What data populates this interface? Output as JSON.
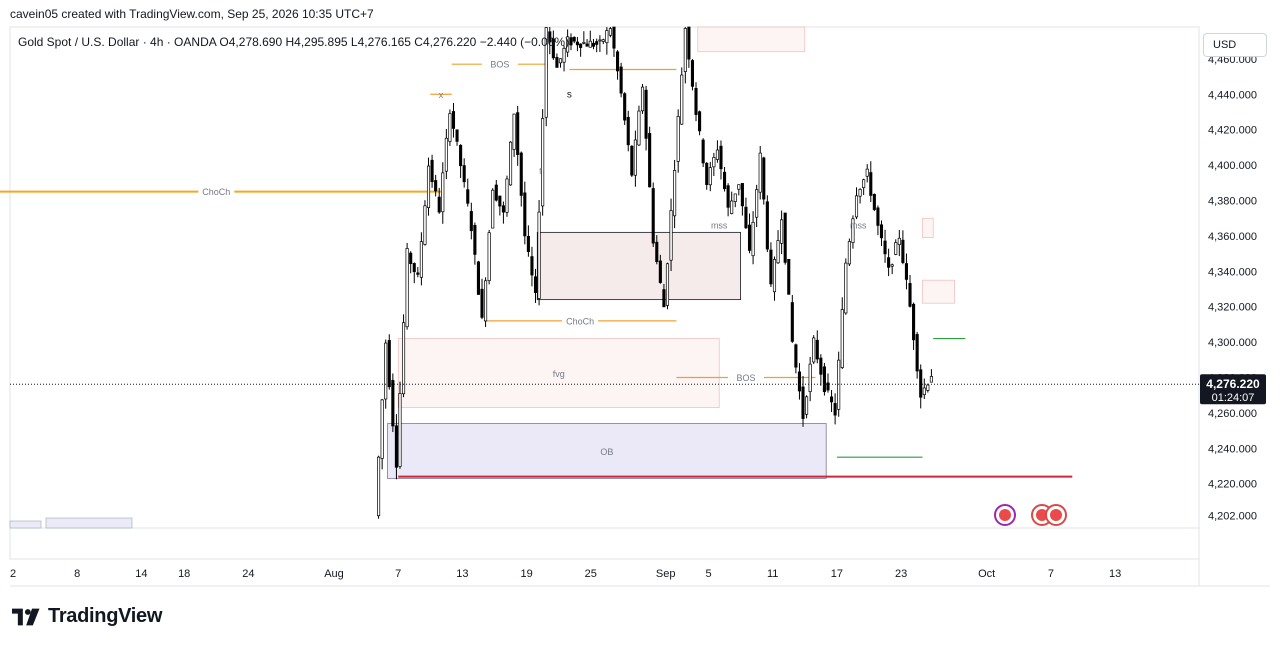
{
  "caption": "cavein05 created with TradingView.com, Sep 25, 2026 10:35 UTC+7",
  "legend": {
    "symbol": "Gold Spot / U.S. Dollar · 4h · OANDA",
    "open": "O4,278.690",
    "high": "H4,295.895",
    "low": "L4,276.165",
    "close": "C4,276.220",
    "change": "−2.440 (−0.06%)"
  },
  "currency": "USD",
  "brand": "TradingView",
  "price_tag": {
    "price": "4,276.220",
    "countdown": "01:24:07"
  },
  "colors": {
    "up": "#ffffff",
    "down": "#000000",
    "choch_orange": "#f5a623",
    "bos_orange": "#f0a030",
    "green": "#2e9e3f",
    "red_line": "#d0243c",
    "zone_pink": "#f5dede",
    "zone_lav": "#dcd8f2"
  },
  "chart_data": {
    "type": "candlestick",
    "symbol": "XAUUSD",
    "timeframe": "4h",
    "y_range": [
      4195,
      4478
    ],
    "y_ticks": [
      4202,
      4220,
      4240,
      4260,
      4280,
      4300,
      4320,
      4340,
      4360,
      4380,
      4400,
      4420,
      4440,
      4460
    ],
    "y_tick_labels": [
      "4,202.000",
      "4,220.000",
      "4,240.000",
      "4,260.000",
      "4,280.000",
      "4,300.000",
      "4,320.000",
      "4,340.000",
      "4,360.000",
      "4,380.000",
      "4,400.000",
      "4,420.000",
      "4,440.000",
      "4,460.000"
    ],
    "x_ticks": [
      {
        "label": "2",
        "date": "2026-07-02"
      },
      {
        "label": "8",
        "date": "2026-07-08"
      },
      {
        "label": "14",
        "date": "2026-07-14"
      },
      {
        "label": "18",
        "date": "2026-07-18"
      },
      {
        "label": "24",
        "date": "2026-07-24"
      },
      {
        "label": "Aug",
        "date": "2026-08-01"
      },
      {
        "label": "7",
        "date": "2026-08-07"
      },
      {
        "label": "13",
        "date": "2026-08-13"
      },
      {
        "label": "19",
        "date": "2026-08-19"
      },
      {
        "label": "25",
        "date": "2026-08-25"
      },
      {
        "label": "Sep",
        "date": "2026-09-01"
      },
      {
        "label": "5",
        "date": "2026-09-05"
      },
      {
        "label": "11",
        "date": "2026-09-11"
      },
      {
        "label": "17",
        "date": "2026-09-17"
      },
      {
        "label": "23",
        "date": "2026-09-23"
      },
      {
        "label": "Oct",
        "date": "2026-10-01"
      },
      {
        "label": "7",
        "date": "2026-10-07"
      },
      {
        "label": "13",
        "date": "2026-10-13"
      }
    ],
    "current_price": 4276.22,
    "price_path": [
      [
        "2026-08-05",
        4202
      ],
      [
        "2026-08-06",
        4300
      ],
      [
        "2026-08-07",
        4232
      ],
      [
        "2026-08-08",
        4350
      ],
      [
        "2026-08-09",
        4336
      ],
      [
        "2026-08-10",
        4400
      ],
      [
        "2026-08-11",
        4375
      ],
      [
        "2026-08-12",
        4432
      ],
      [
        "2026-08-13",
        4400
      ],
      [
        "2026-08-14",
        4365
      ],
      [
        "2026-08-15",
        4312
      ],
      [
        "2026-08-16",
        4388
      ],
      [
        "2026-08-17",
        4372
      ],
      [
        "2026-08-18",
        4430
      ],
      [
        "2026-08-19",
        4360
      ],
      [
        "2026-08-20",
        4325
      ],
      [
        "2026-08-21",
        4478
      ],
      [
        "2026-08-22",
        4455
      ],
      [
        "2026-08-23",
        4470
      ],
      [
        "2026-08-26",
        4468
      ],
      [
        "2026-08-27",
        4478
      ],
      [
        "2026-08-28",
        4440
      ],
      [
        "2026-08-29",
        4395
      ],
      [
        "2026-08-30",
        4445
      ],
      [
        "2026-08-31",
        4358
      ],
      [
        "2026-09-01",
        4320
      ],
      [
        "2026-09-02",
        4400
      ],
      [
        "2026-09-03",
        4478
      ],
      [
        "2026-09-04",
        4430
      ],
      [
        "2026-09-05",
        4390
      ],
      [
        "2026-09-06",
        4410
      ],
      [
        "2026-09-07",
        4375
      ],
      [
        "2026-09-08",
        4390
      ],
      [
        "2026-09-09",
        4350
      ],
      [
        "2026-09-10",
        4405
      ],
      [
        "2026-09-11",
        4330
      ],
      [
        "2026-09-12",
        4372
      ],
      [
        "2026-09-13",
        4300
      ],
      [
        "2026-09-14",
        4258
      ],
      [
        "2026-09-15",
        4300
      ],
      [
        "2026-09-16",
        4275
      ],
      [
        "2026-09-17",
        4260
      ],
      [
        "2026-09-18",
        4345
      ],
      [
        "2026-09-19",
        4385
      ],
      [
        "2026-09-20",
        4395
      ],
      [
        "2026-09-21",
        4365
      ],
      [
        "2026-09-22",
        4340
      ],
      [
        "2026-09-23",
        4360
      ],
      [
        "2026-09-24",
        4320
      ],
      [
        "2026-09-25",
        4270
      ],
      [
        "2026-09-26",
        4282
      ]
    ],
    "annotations": {
      "lines": [
        {
          "label": "ChoCh",
          "price": 4385,
          "from": "2026-06-30",
          "to": "2026-08-11",
          "color": "choch_orange"
        },
        {
          "label": "BOS",
          "price": 4457,
          "from": "2026-08-12",
          "to": "2026-08-21",
          "color": "bos_orange"
        },
        {
          "label": "x",
          "price": 4440,
          "from": "2026-08-10",
          "to": "2026-08-12",
          "color": "bos_orange"
        },
        {
          "label": "",
          "price": 4454,
          "from": "2026-08-23",
          "to": "2026-09-02",
          "color": "bos_orange"
        },
        {
          "label": "ChoCh",
          "price": 4312,
          "from": "2026-08-15",
          "to": "2026-09-02",
          "color": "bos_orange"
        },
        {
          "label": "BOS",
          "price": 4280,
          "from": "2026-09-02",
          "to": "2026-09-15",
          "color": "bos_orange"
        },
        {
          "label": "",
          "price": 4235,
          "from": "2026-09-17",
          "to": "2026-09-25",
          "color": "green"
        },
        {
          "label": "",
          "price": 4302,
          "from": "2026-09-26",
          "to": "2026-09-29",
          "color": "green"
        },
        {
          "label": "",
          "price": 4224,
          "from": "2026-08-07",
          "to": "2026-10-09",
          "color": "red_line"
        }
      ],
      "zones": [
        {
          "label": "OB",
          "top": 4254,
          "bottom": 4223,
          "from": "2026-08-06",
          "to": "2026-09-16",
          "color": "zone_lav"
        },
        {
          "label": "fvg",
          "top": 4302,
          "bottom": 4263,
          "from": "2026-08-07",
          "to": "2026-09-06",
          "color": "zone_pink"
        },
        {
          "label": "",
          "top": 4362,
          "bottom": 4324,
          "from": "2026-08-20",
          "to": "2026-09-08",
          "color": "zone_pink",
          "bordered": true
        },
        {
          "label": "",
          "top": 4478,
          "bottom": 4464,
          "from": "2026-09-04",
          "to": "2026-09-14",
          "color": "zone_pink"
        },
        {
          "label": "",
          "top": 4370,
          "bottom": 4359,
          "from": "2026-09-25",
          "to": "2026-09-26",
          "color": "zone_pink"
        },
        {
          "label": "",
          "top": 4335,
          "bottom": 4322,
          "from": "2026-09-25",
          "to": "2026-09-28",
          "color": "zone_pink"
        }
      ],
      "texts": [
        {
          "text": "s",
          "price": 4440,
          "date": "2026-08-23"
        },
        {
          "text": "mss",
          "price": 4366,
          "date": "2026-09-06"
        },
        {
          "text": "mss",
          "price": 4366,
          "date": "2026-09-19"
        }
      ]
    }
  }
}
